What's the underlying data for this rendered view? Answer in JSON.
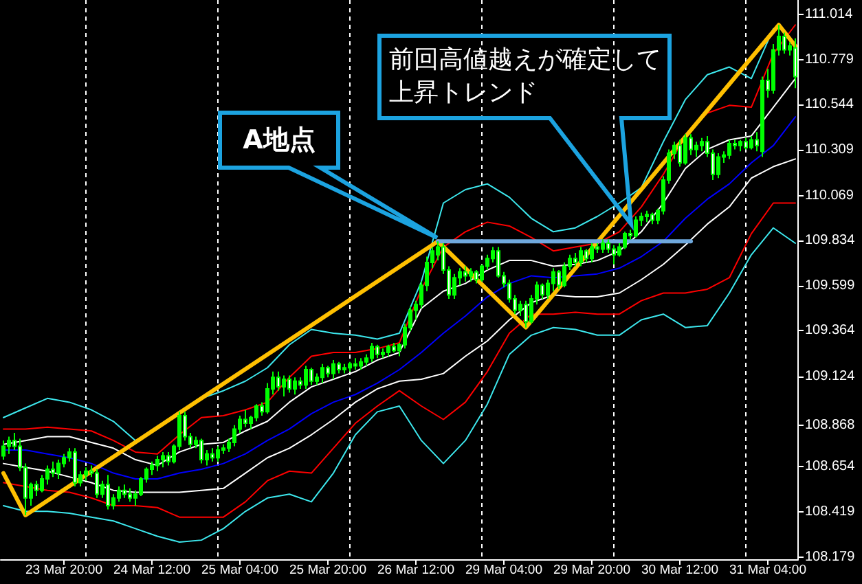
{
  "chart_data": {
    "type": "candlestick",
    "color": "#00ff00",
    "categories": [
      null,
      null,
      null,
      null,
      null,
      null,
      null,
      null,
      null,
      null,
      null,
      "23 Mar 20:00",
      null,
      null,
      null,
      null,
      null,
      null,
      null,
      null,
      null,
      null,
      null,
      null,
      null,
      null,
      null,
      "24 Mar 12:00",
      null,
      null,
      null,
      null,
      null,
      null,
      null,
      null,
      null,
      null,
      null,
      null,
      null,
      null,
      null,
      "25 Mar 04:00",
      null,
      null,
      null,
      null,
      null,
      null,
      null,
      null,
      null,
      null,
      null,
      null,
      null,
      null,
      null,
      "25 Mar 20:00",
      null,
      null,
      null,
      null,
      null,
      null,
      null,
      null,
      null,
      null,
      null,
      null,
      null,
      null,
      null,
      "26 Mar 12:00",
      null,
      null,
      null,
      null,
      null,
      null,
      null,
      null,
      null,
      null,
      null,
      null,
      null,
      null,
      null,
      "29 Mar 04:00",
      null,
      null,
      null,
      null,
      null,
      null,
      null,
      null,
      null,
      null,
      null,
      null,
      null,
      null,
      null,
      "29 Mar 20:00",
      null,
      null,
      null,
      null,
      null,
      null,
      null,
      null,
      null,
      null,
      null,
      null,
      null,
      null,
      null,
      "30 Mar 12:00",
      null,
      null,
      null,
      null,
      null,
      null,
      null,
      null,
      null,
      null,
      null,
      null,
      null,
      null,
      null,
      "31 Mar 04:00",
      null,
      null,
      null,
      null,
      null
    ],
    "ohlc": [
      [
        108.71,
        108.79,
        108.69,
        108.76
      ],
      [
        108.76,
        108.81,
        108.72,
        108.79
      ],
      [
        108.79,
        108.83,
        108.74,
        108.76
      ],
      [
        108.76,
        108.8,
        108.63,
        108.65
      ],
      [
        108.65,
        108.67,
        108.4,
        108.49
      ],
      [
        108.49,
        108.57,
        108.45,
        108.56
      ],
      [
        108.56,
        108.58,
        108.5,
        108.53
      ],
      [
        108.53,
        108.61,
        108.52,
        108.59
      ],
      [
        108.59,
        108.66,
        108.56,
        108.64
      ],
      [
        108.64,
        108.68,
        108.6,
        108.62
      ],
      [
        108.62,
        108.69,
        108.59,
        108.67
      ],
      [
        108.67,
        108.72,
        108.65,
        108.7
      ],
      [
        108.7,
        108.75,
        108.68,
        108.73
      ],
      [
        108.73,
        108.75,
        108.55,
        108.57
      ],
      [
        108.57,
        108.63,
        108.55,
        108.61
      ],
      [
        108.61,
        108.65,
        108.58,
        108.63
      ],
      [
        108.63,
        108.66,
        108.6,
        108.62
      ],
      [
        108.62,
        108.64,
        108.49,
        108.51
      ],
      [
        108.51,
        108.58,
        108.49,
        108.56
      ],
      [
        108.56,
        108.61,
        108.43,
        108.45
      ],
      [
        108.45,
        108.51,
        108.43,
        108.49
      ],
      [
        108.49,
        108.55,
        108.47,
        108.53
      ],
      [
        108.53,
        108.56,
        108.49,
        108.51
      ],
      [
        108.51,
        108.54,
        108.47,
        108.49
      ],
      [
        108.49,
        108.53,
        108.45,
        108.51
      ],
      [
        108.51,
        108.6,
        108.5,
        108.59
      ],
      [
        108.59,
        108.65,
        108.57,
        108.64
      ],
      [
        108.64,
        108.68,
        108.61,
        108.66
      ],
      [
        108.66,
        108.71,
        108.63,
        108.69
      ],
      [
        108.69,
        108.73,
        108.65,
        108.71
      ],
      [
        108.71,
        108.73,
        108.66,
        108.68
      ],
      [
        108.68,
        108.77,
        108.67,
        108.76
      ],
      [
        108.76,
        108.94,
        108.74,
        108.92
      ],
      [
        108.92,
        108.94,
        108.79,
        108.81
      ],
      [
        108.81,
        108.83,
        108.75,
        108.77
      ],
      [
        108.77,
        108.81,
        108.75,
        108.79
      ],
      [
        108.79,
        108.8,
        108.67,
        108.69
      ],
      [
        108.69,
        108.74,
        108.66,
        108.72
      ],
      [
        108.72,
        108.75,
        108.68,
        108.7
      ],
      [
        108.7,
        108.76,
        108.68,
        108.74
      ],
      [
        108.74,
        108.77,
        108.72,
        108.75
      ],
      [
        108.75,
        108.8,
        108.73,
        108.78
      ],
      [
        108.78,
        108.87,
        108.76,
        108.85
      ],
      [
        108.85,
        108.92,
        108.83,
        108.9
      ],
      [
        108.9,
        108.95,
        108.86,
        108.88
      ],
      [
        108.88,
        108.92,
        108.85,
        108.91
      ],
      [
        108.91,
        108.98,
        108.89,
        108.97
      ],
      [
        108.97,
        108.99,
        108.92,
        108.94
      ],
      [
        108.94,
        109.09,
        108.93,
        109.06
      ],
      [
        109.06,
        109.15,
        109.03,
        109.12
      ],
      [
        109.12,
        109.15,
        109.05,
        109.07
      ],
      [
        109.07,
        109.13,
        109.02,
        109.11
      ],
      [
        109.11,
        109.13,
        109.04,
        109.06
      ],
      [
        109.06,
        109.12,
        109.03,
        109.1
      ],
      [
        109.1,
        109.12,
        109.06,
        109.08
      ],
      [
        109.08,
        109.18,
        109.06,
        109.16
      ],
      [
        109.16,
        109.17,
        109.08,
        109.1
      ],
      [
        109.1,
        109.14,
        109.08,
        109.12
      ],
      [
        109.12,
        109.19,
        109.09,
        109.17
      ],
      [
        109.17,
        109.18,
        109.12,
        109.14
      ],
      [
        109.14,
        109.21,
        109.11,
        109.19
      ],
      [
        109.19,
        109.2,
        109.14,
        109.16
      ],
      [
        109.16,
        109.19,
        109.14,
        109.17
      ],
      [
        109.17,
        109.2,
        109.15,
        109.19
      ],
      [
        109.19,
        109.22,
        109.16,
        109.18
      ],
      [
        109.18,
        109.22,
        109.16,
        109.2
      ],
      [
        109.2,
        109.24,
        109.18,
        109.22
      ],
      [
        109.22,
        109.3,
        109.2,
        109.28
      ],
      [
        109.28,
        109.29,
        109.22,
        109.24
      ],
      [
        109.24,
        109.27,
        109.22,
        109.25
      ],
      [
        109.25,
        109.29,
        109.23,
        109.28
      ],
      [
        109.28,
        109.3,
        109.25,
        109.26
      ],
      [
        109.26,
        109.3,
        109.23,
        109.29
      ],
      [
        109.29,
        109.4,
        109.27,
        109.38
      ],
      [
        109.38,
        109.49,
        109.36,
        109.47
      ],
      [
        109.47,
        109.52,
        109.42,
        109.5
      ],
      [
        109.5,
        109.62,
        109.48,
        109.6
      ],
      [
        109.6,
        109.75,
        109.57,
        109.72
      ],
      [
        109.72,
        109.8,
        109.69,
        109.78
      ],
      [
        109.76,
        109.83,
        109.73,
        109.8
      ],
      [
        109.8,
        109.82,
        109.66,
        109.68
      ],
      [
        109.68,
        109.7,
        109.53,
        109.55
      ],
      [
        109.55,
        109.66,
        109.53,
        109.64
      ],
      [
        109.64,
        109.69,
        109.6,
        109.67
      ],
      [
        109.67,
        109.7,
        109.62,
        109.65
      ],
      [
        109.65,
        109.69,
        109.62,
        109.67
      ],
      [
        109.67,
        109.68,
        109.61,
        109.63
      ],
      [
        109.63,
        109.71,
        109.62,
        109.7
      ],
      [
        109.7,
        109.76,
        109.68,
        109.74
      ],
      [
        109.74,
        109.8,
        109.72,
        109.78
      ],
      [
        109.78,
        109.8,
        109.64,
        109.65
      ],
      [
        109.65,
        109.67,
        109.59,
        109.61
      ],
      [
        109.61,
        109.63,
        109.51,
        109.53
      ],
      [
        109.53,
        109.55,
        109.45,
        109.47
      ],
      [
        109.47,
        109.52,
        109.44,
        109.5
      ],
      [
        109.5,
        109.52,
        109.38,
        109.41
      ],
      [
        109.41,
        109.55,
        109.4,
        109.53
      ],
      [
        109.53,
        109.62,
        109.5,
        109.6
      ],
      [
        109.6,
        109.61,
        109.53,
        109.55
      ],
      [
        109.55,
        109.63,
        109.53,
        109.61
      ],
      [
        109.61,
        109.69,
        109.57,
        109.67
      ],
      [
        109.67,
        109.68,
        109.58,
        109.6
      ],
      [
        109.6,
        109.72,
        109.59,
        109.7
      ],
      [
        109.7,
        109.76,
        109.68,
        109.74
      ],
      [
        109.74,
        109.77,
        109.7,
        109.72
      ],
      [
        109.72,
        109.8,
        109.7,
        109.78
      ],
      [
        109.78,
        109.79,
        109.72,
        109.74
      ],
      [
        109.74,
        109.82,
        109.72,
        109.8
      ],
      [
        109.8,
        109.82,
        109.77,
        109.79
      ],
      [
        109.79,
        109.84,
        109.77,
        109.82
      ],
      [
        109.82,
        109.84,
        109.77,
        109.79
      ],
      [
        109.79,
        109.81,
        109.71,
        109.76
      ],
      [
        109.76,
        109.82,
        109.75,
        109.8
      ],
      [
        109.8,
        109.88,
        109.79,
        109.87
      ],
      [
        109.87,
        109.89,
        109.84,
        109.86
      ],
      [
        109.86,
        109.96,
        109.85,
        109.94
      ],
      [
        109.94,
        109.98,
        109.91,
        109.96
      ],
      [
        109.96,
        109.99,
        109.93,
        109.97
      ],
      [
        109.97,
        109.98,
        109.92,
        109.94
      ],
      [
        109.94,
        110.0,
        109.92,
        109.99
      ],
      [
        109.99,
        110.17,
        109.97,
        110.15
      ],
      [
        110.15,
        110.31,
        110.13,
        110.29
      ],
      [
        110.29,
        110.35,
        110.26,
        110.33
      ],
      [
        110.33,
        110.36,
        110.22,
        110.24
      ],
      [
        110.24,
        110.39,
        110.23,
        110.37
      ],
      [
        110.37,
        110.39,
        110.28,
        110.31
      ],
      [
        110.31,
        110.35,
        110.27,
        110.33
      ],
      [
        110.33,
        110.37,
        110.3,
        110.35
      ],
      [
        110.35,
        110.38,
        110.27,
        110.29
      ],
      [
        110.29,
        110.31,
        110.15,
        110.18
      ],
      [
        110.18,
        110.29,
        110.16,
        110.27
      ],
      [
        110.27,
        110.3,
        110.24,
        110.28
      ],
      [
        110.28,
        110.36,
        110.26,
        110.34
      ],
      [
        110.34,
        110.36,
        110.31,
        110.33
      ],
      [
        110.33,
        110.36,
        110.3,
        110.35
      ],
      [
        110.35,
        110.37,
        110.31,
        110.32
      ],
      [
        110.32,
        110.38,
        110.31,
        110.36
      ],
      [
        110.36,
        110.4,
        110.3,
        110.33
      ],
      [
        110.3,
        110.69,
        110.27,
        110.67
      ],
      [
        110.67,
        110.73,
        110.58,
        110.62
      ],
      [
        110.62,
        110.86,
        110.6,
        110.83
      ],
      [
        110.83,
        110.96,
        110.8,
        110.9
      ],
      [
        110.9,
        110.92,
        110.81,
        110.83
      ],
      [
        110.83,
        110.87,
        110.8,
        110.85
      ],
      [
        110.84,
        110.89,
        110.63,
        110.69
      ]
    ],
    "series": [
      {
        "type": "line",
        "color": "#3de8ee",
        "values": [
          108.91,
          null,
          null,
          null,
          108.96,
          null,
          null,
          null,
          109.01,
          null,
          null,
          null,
          108.99,
          null,
          null,
          null,
          108.95,
          null,
          null,
          null,
          108.89,
          null,
          null,
          null,
          108.79,
          null,
          null,
          null,
          108.85,
          null,
          null,
          null,
          108.94,
          null,
          null,
          null,
          109.01,
          null,
          null,
          null,
          109.05,
          null,
          null,
          null,
          109.1,
          null,
          null,
          null,
          109.17,
          null,
          null,
          null,
          109.29,
          null,
          null,
          null,
          109.37,
          null,
          null,
          null,
          109.35,
          null,
          null,
          null,
          109.34,
          null,
          null,
          null,
          109.32,
          null,
          null,
          null,
          109.35,
          null,
          null,
          null,
          109.62,
          null,
          null,
          null,
          110.03,
          null,
          null,
          null,
          110.1,
          null,
          null,
          null,
          110.13,
          null,
          null,
          null,
          110.06,
          null,
          null,
          null,
          109.95,
          null,
          null,
          null,
          109.88,
          null,
          null,
          null,
          109.9,
          null,
          null,
          null,
          109.96,
          null,
          null,
          null,
          110.03,
          null,
          null,
          null,
          110.11,
          null,
          null,
          null,
          110.35,
          null,
          null,
          null,
          110.57,
          null,
          null,
          null,
          110.7,
          null,
          null,
          null,
          110.74,
          null,
          null,
          null,
          110.68,
          null,
          null,
          null,
          110.94,
          null,
          null,
          null,
          null
        ]
      },
      {
        "type": "line",
        "color": "#ff0000",
        "values": [
          108.85,
          null,
          null,
          null,
          108.85,
          null,
          null,
          null,
          108.86,
          null,
          null,
          null,
          108.85,
          null,
          null,
          null,
          108.84,
          null,
          null,
          null,
          108.79,
          null,
          null,
          null,
          108.73,
          null,
          null,
          null,
          108.72,
          null,
          null,
          null,
          108.82,
          null,
          null,
          null,
          108.91,
          null,
          null,
          null,
          108.92,
          null,
          null,
          null,
          108.95,
          null,
          null,
          null,
          108.99,
          null,
          null,
          null,
          109.12,
          null,
          null,
          null,
          109.23,
          null,
          null,
          null,
          109.25,
          null,
          null,
          null,
          109.25,
          null,
          null,
          null,
          109.27,
          null,
          null,
          null,
          109.3,
          null,
          null,
          null,
          109.58,
          null,
          null,
          null,
          109.8,
          null,
          null,
          null,
          109.88,
          null,
          null,
          null,
          109.93,
          null,
          null,
          null,
          109.91,
          null,
          null,
          null,
          109.85,
          null,
          null,
          null,
          109.78,
          null,
          null,
          null,
          109.8,
          null,
          null,
          null,
          109.82,
          null,
          null,
          null,
          109.88,
          null,
          null,
          null,
          110.01,
          null,
          null,
          null,
          110.18,
          null,
          null,
          null,
          110.38,
          null,
          null,
          null,
          110.5,
          null,
          null,
          null,
          110.54,
          null,
          null,
          null,
          110.53,
          null,
          null,
          null,
          110.81,
          null,
          null,
          null,
          110.96
        ]
      },
      {
        "type": "line",
        "color": "#ffffff",
        "values": [
          108.77,
          null,
          null,
          null,
          108.79,
          null,
          null,
          null,
          108.81,
          null,
          null,
          null,
          108.81,
          null,
          null,
          null,
          108.78,
          null,
          null,
          null,
          108.75,
          null,
          null,
          null,
          108.69,
          null,
          null,
          null,
          108.66,
          null,
          null,
          null,
          108.73,
          null,
          null,
          null,
          108.77,
          null,
          null,
          null,
          108.78,
          null,
          null,
          null,
          108.84,
          null,
          null,
          null,
          108.89,
          null,
          null,
          null,
          108.99,
          null,
          null,
          null,
          109.07,
          null,
          null,
          null,
          109.11,
          null,
          null,
          null,
          109.15,
          null,
          null,
          null,
          109.21,
          null,
          null,
          null,
          109.25,
          null,
          null,
          null,
          109.48,
          null,
          null,
          null,
          109.57,
          null,
          null,
          null,
          109.61,
          null,
          null,
          null,
          109.68,
          null,
          null,
          null,
          109.73,
          null,
          null,
          null,
          109.73,
          null,
          null,
          null,
          109.7,
          null,
          null,
          null,
          109.71,
          null,
          null,
          null,
          109.73,
          null,
          null,
          null,
          109.78,
          null,
          null,
          null,
          109.88,
          null,
          null,
          null,
          110.03,
          null,
          null,
          null,
          110.21,
          null,
          null,
          null,
          110.31,
          null,
          null,
          null,
          110.36,
          null,
          null,
          null,
          110.38,
          null,
          null,
          null,
          110.53,
          null,
          null,
          null,
          110.68
        ]
      },
      {
        "type": "line",
        "color": "#0000ff",
        "values": [
          108.74,
          null,
          null,
          null,
          108.74,
          null,
          null,
          null,
          108.72,
          null,
          null,
          null,
          108.7,
          null,
          null,
          null,
          108.67,
          null,
          null,
          null,
          108.62,
          null,
          null,
          null,
          108.59,
          null,
          null,
          null,
          108.59,
          null,
          null,
          null,
          108.62,
          null,
          null,
          null,
          108.64,
          null,
          null,
          null,
          108.67,
          null,
          null,
          null,
          108.72,
          null,
          null,
          null,
          108.79,
          null,
          null,
          null,
          108.85,
          null,
          null,
          null,
          108.93,
          null,
          null,
          null,
          108.99,
          null,
          null,
          null,
          109.03,
          null,
          null,
          null,
          109.09,
          null,
          null,
          null,
          109.16,
          null,
          null,
          null,
          109.25,
          null,
          null,
          null,
          109.35,
          null,
          null,
          null,
          109.44,
          null,
          null,
          null,
          109.54,
          null,
          null,
          null,
          109.61,
          null,
          null,
          null,
          109.65,
          null,
          null,
          null,
          109.64,
          null,
          null,
          null,
          109.65,
          null,
          null,
          null,
          109.66,
          null,
          null,
          null,
          109.69,
          null,
          null,
          null,
          109.75,
          null,
          null,
          null,
          109.83,
          null,
          null,
          null,
          109.95,
          null,
          null,
          null,
          110.05,
          null,
          null,
          null,
          110.13,
          null,
          null,
          null,
          110.24,
          null,
          null,
          null,
          110.33,
          null,
          null,
          null,
          110.48
        ]
      },
      {
        "type": "line",
        "color": "#ffffff",
        "values": [
          108.67,
          null,
          null,
          null,
          108.65,
          null,
          null,
          null,
          108.63,
          null,
          null,
          null,
          108.6,
          null,
          null,
          null,
          108.57,
          null,
          null,
          null,
          108.53,
          null,
          null,
          null,
          108.52,
          null,
          null,
          null,
          108.52,
          null,
          null,
          null,
          108.52,
          null,
          null,
          null,
          108.53,
          null,
          null,
          null,
          108.54,
          null,
          null,
          null,
          108.62,
          null,
          null,
          null,
          108.7,
          null,
          null,
          null,
          108.75,
          null,
          null,
          null,
          108.82,
          null,
          null,
          null,
          108.9,
          null,
          null,
          null,
          108.99,
          null,
          null,
          null,
          109.06,
          null,
          null,
          null,
          109.1,
          null,
          null,
          null,
          109.11,
          null,
          null,
          null,
          109.14,
          null,
          null,
          null,
          109.23,
          null,
          null,
          null,
          109.31,
          null,
          null,
          null,
          109.42,
          null,
          null,
          null,
          109.51,
          null,
          null,
          null,
          109.55,
          null,
          null,
          null,
          109.54,
          null,
          null,
          null,
          109.54,
          null,
          null,
          null,
          109.56,
          null,
          null,
          null,
          109.63,
          null,
          null,
          null,
          109.71,
          null,
          null,
          null,
          109.81,
          null,
          null,
          null,
          109.92,
          null,
          null,
          null,
          110.01,
          null,
          null,
          null,
          110.16,
          null,
          null,
          null,
          110.22,
          null,
          null,
          null,
          110.26
        ]
      },
      {
        "type": "line",
        "color": "#ff0000",
        "values": [
          108.57,
          null,
          null,
          null,
          108.55,
          null,
          null,
          null,
          108.53,
          null,
          null,
          null,
          108.52,
          null,
          null,
          null,
          108.49,
          null,
          null,
          null,
          108.45,
          null,
          null,
          null,
          108.45,
          null,
          null,
          null,
          108.44,
          null,
          null,
          null,
          108.39,
          null,
          null,
          null,
          108.39,
          null,
          null,
          null,
          108.39,
          null,
          null,
          null,
          108.47,
          null,
          null,
          null,
          108.58,
          null,
          null,
          null,
          108.63,
          null,
          null,
          null,
          108.62,
          null,
          null,
          null,
          108.75,
          null,
          null,
          null,
          108.88,
          null,
          null,
          null,
          108.97,
          null,
          null,
          null,
          109.05,
          null,
          null,
          null,
          108.97,
          null,
          null,
          null,
          108.9,
          null,
          null,
          null,
          108.99,
          null,
          null,
          null,
          109.15,
          null,
          null,
          null,
          109.35,
          null,
          null,
          null,
          109.45,
          null,
          null,
          null,
          109.45,
          null,
          null,
          null,
          109.46,
          null,
          null,
          null,
          109.45,
          null,
          null,
          null,
          109.45,
          null,
          null,
          null,
          109.52,
          null,
          null,
          null,
          109.56,
          null,
          null,
          null,
          109.56,
          null,
          null,
          null,
          109.58,
          null,
          null,
          null,
          109.64,
          null,
          null,
          null,
          109.87,
          null,
          null,
          null,
          110.03,
          null,
          null,
          null,
          110.03
        ]
      },
      {
        "type": "line",
        "color": "#3de8ee",
        "values": [
          108.45,
          null,
          null,
          null,
          108.42,
          null,
          null,
          null,
          108.42,
          null,
          null,
          null,
          108.41,
          null,
          null,
          null,
          108.39,
          null,
          null,
          null,
          108.37,
          null,
          null,
          null,
          108.33,
          null,
          null,
          null,
          108.29,
          null,
          null,
          null,
          108.26,
          null,
          null,
          null,
          108.27,
          null,
          null,
          null,
          108.33,
          null,
          null,
          null,
          108.42,
          null,
          null,
          null,
          108.49,
          null,
          null,
          null,
          108.51,
          null,
          null,
          null,
          108.47,
          null,
          null,
          null,
          108.62,
          null,
          null,
          null,
          108.82,
          null,
          null,
          null,
          108.94,
          null,
          null,
          null,
          108.97,
          null,
          null,
          null,
          108.79,
          null,
          null,
          null,
          108.67,
          null,
          null,
          null,
          108.79,
          null,
          null,
          null,
          108.98,
          null,
          null,
          null,
          109.24,
          null,
          null,
          null,
          109.34,
          null,
          null,
          null,
          109.38,
          null,
          null,
          null,
          109.37,
          null,
          null,
          null,
          109.34,
          null,
          null,
          null,
          109.34,
          null,
          null,
          null,
          109.42,
          null,
          null,
          null,
          109.45,
          null,
          null,
          null,
          109.38,
          null,
          null,
          null,
          109.39,
          null,
          null,
          null,
          109.56,
          null,
          null,
          null,
          109.76,
          null,
          null,
          null,
          109.9,
          null,
          null,
          null,
          109.82
        ]
      },
      {
        "type": "line",
        "color": "#ffc000",
        "values": [
          108.62,
          null,
          null,
          null,
          108.4,
          null,
          null,
          null,
          null,
          null,
          null,
          null,
          null,
          null,
          null,
          null,
          null,
          null,
          null,
          null,
          null,
          null,
          null,
          null,
          null,
          null,
          null,
          null,
          null,
          null,
          null,
          null,
          null,
          null,
          null,
          null,
          null,
          null,
          null,
          null,
          null,
          null,
          null,
          null,
          null,
          null,
          null,
          null,
          null,
          null,
          null,
          null,
          null,
          null,
          null,
          null,
          null,
          null,
          null,
          null,
          null,
          null,
          null,
          null,
          null,
          null,
          null,
          null,
          null,
          null,
          null,
          null,
          null,
          null,
          null,
          null,
          null,
          null,
          null,
          109.83,
          null,
          null,
          null,
          null,
          null,
          null,
          null,
          null,
          null,
          null,
          null,
          null,
          null,
          null,
          null,
          109.38,
          null,
          null,
          null,
          null,
          null,
          null,
          null,
          null,
          null,
          null,
          null,
          null,
          null,
          null,
          null,
          null,
          null,
          null,
          null,
          null,
          null,
          null,
          null,
          null,
          null,
          null,
          null,
          null,
          null,
          null,
          null,
          null,
          null,
          null,
          null,
          null,
          null,
          null,
          null,
          null,
          null,
          null,
          null,
          null,
          null,
          110.96,
          null,
          null,
          110.85
        ]
      },
      {
        "type": "line",
        "color": "#6fa8dc",
        "values": [
          null,
          null,
          null,
          null,
          null,
          null,
          null,
          null,
          null,
          null,
          null,
          null,
          null,
          null,
          null,
          null,
          null,
          null,
          null,
          null,
          null,
          null,
          null,
          null,
          null,
          null,
          null,
          null,
          null,
          null,
          null,
          null,
          null,
          null,
          null,
          null,
          null,
          null,
          null,
          null,
          null,
          null,
          null,
          null,
          null,
          null,
          null,
          null,
          null,
          null,
          null,
          null,
          null,
          null,
          null,
          null,
          null,
          null,
          null,
          null,
          null,
          null,
          null,
          null,
          null,
          null,
          null,
          null,
          null,
          null,
          null,
          null,
          null,
          null,
          null,
          null,
          null,
          null,
          null,
          109.83,
          null,
          null,
          null,
          null,
          null,
          null,
          null,
          null,
          null,
          null,
          null,
          null,
          null,
          null,
          null,
          null,
          null,
          null,
          null,
          null,
          null,
          null,
          null,
          null,
          null,
          null,
          null,
          null,
          null,
          null,
          null,
          null,
          null,
          null,
          null,
          null,
          null,
          null,
          null,
          null,
          null,
          null,
          null,
          null,
          null,
          109.83,
          null,
          null,
          null,
          null,
          null,
          null,
          null,
          null,
          null,
          null,
          null,
          null,
          null,
          null,
          null,
          null,
          null,
          null,
          null
        ]
      }
    ],
    "ylim": [
      108.17,
      111.09
    ],
    "yticks": [
      111.014,
      110.779,
      110.544,
      110.309,
      110.069,
      109.834,
      109.599,
      109.364,
      109.124,
      108.868,
      108.654,
      108.419,
      108.179
    ],
    "annotations": [
      "A地点",
      "前回高値越えが確定して上昇トレンド"
    ]
  }
}
